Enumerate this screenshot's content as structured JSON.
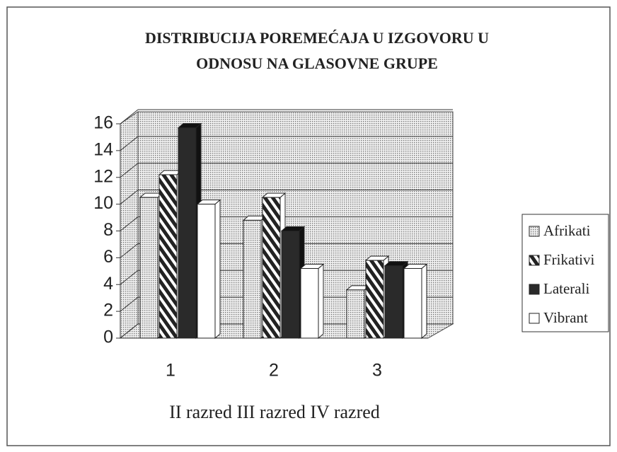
{
  "chart_data": {
    "type": "bar3d",
    "title": [
      "DISTRIBUCIJA POREMEĆAJA  U IZGOVORU U",
      "ODNOSU NA GLASOVNE GRUPE"
    ],
    "categories": [
      "1",
      "2",
      "3"
    ],
    "x_label": "II razred  III razred  IV razred",
    "ylim": [
      0,
      16
    ],
    "yticks": [
      0,
      2,
      4,
      6,
      8,
      10,
      12,
      14,
      16
    ],
    "grid": true,
    "legend": "right",
    "series": [
      {
        "name": "Afrikati",
        "color": "#d8d8d8",
        "pattern": "dots",
        "values": [
          10.5,
          8.8,
          3.6
        ]
      },
      {
        "name": "Frikativi",
        "color": "#222222",
        "pattern": "stripes",
        "values": [
          12.2,
          10.5,
          5.8
        ]
      },
      {
        "name": "Laterali",
        "color": "#2a2a2a",
        "pattern": "solid",
        "values": [
          15.7,
          8,
          5.4
        ]
      },
      {
        "name": "Vibrant",
        "color": "#ffffff",
        "pattern": "solid",
        "values": [
          10,
          5.2,
          5.2
        ]
      }
    ]
  }
}
